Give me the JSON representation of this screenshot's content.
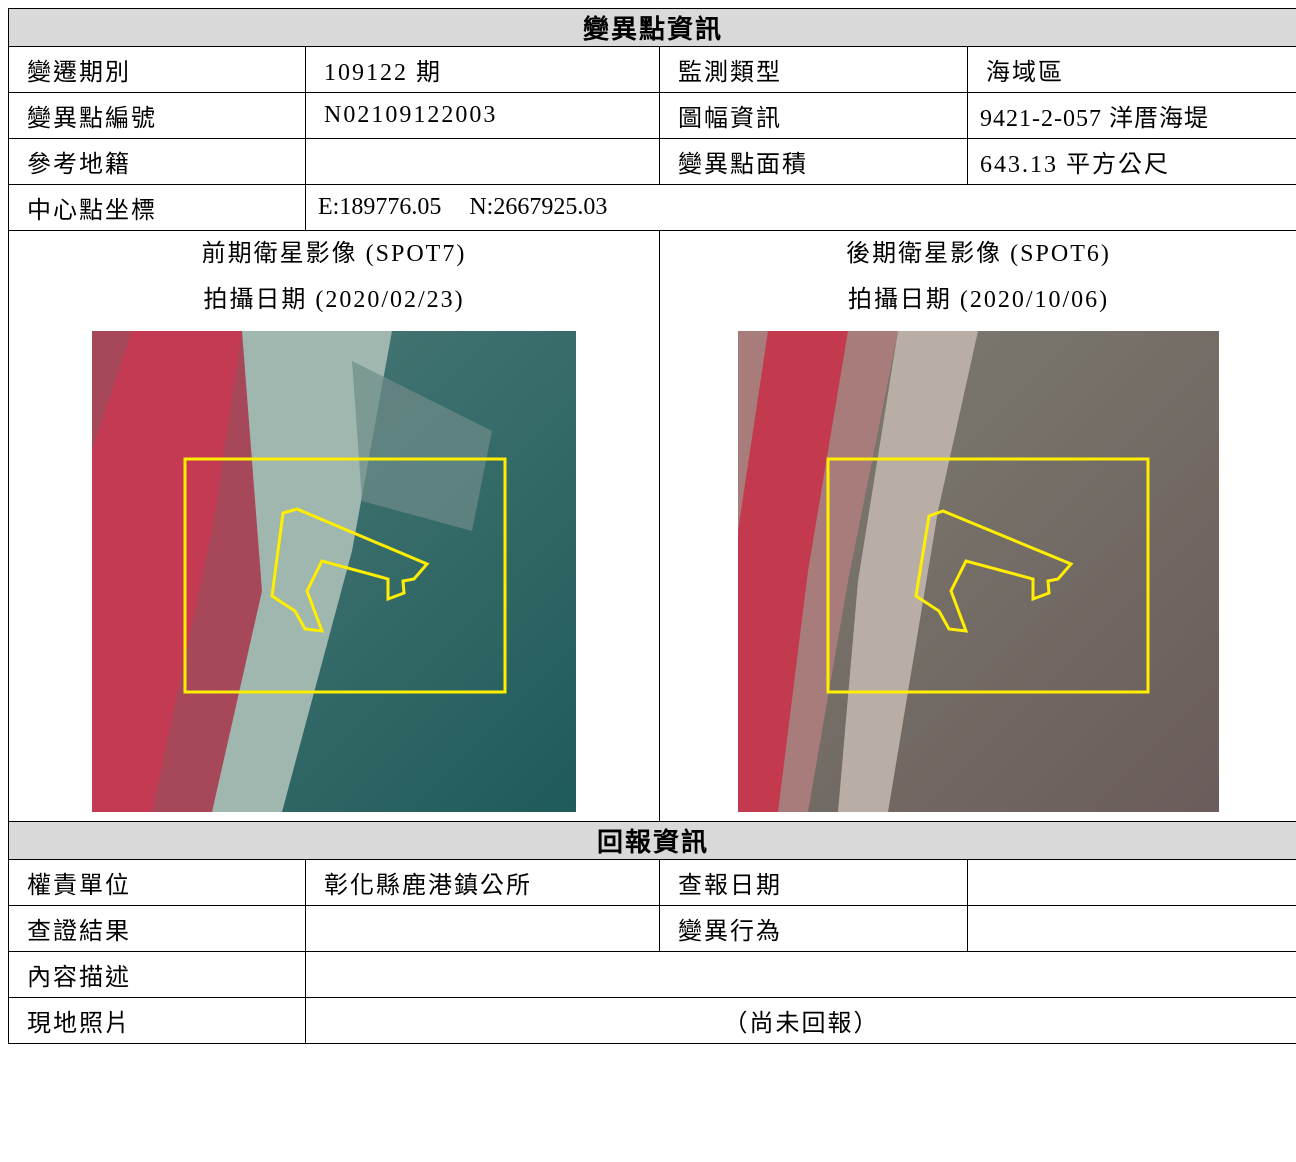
{
  "header": {
    "title": "變異點資訊"
  },
  "info": {
    "period_label": "變遷期別",
    "period": "109122 期",
    "type_label": "監測類型",
    "type": "海域區",
    "id_label": "變異點編號",
    "id": "N02109122003",
    "sheet_label": "圖幅資訊",
    "sheet": "9421-2-057 洋厝海堤",
    "cadastre_label": "參考地籍",
    "area_label": "變異點面積",
    "area": "643.13 平方公尺",
    "center_label": "中心點坐標",
    "center_e": "E:189776.05",
    "center_n": "N:2667925.03"
  },
  "images": [
    {
      "title": "前期衛星影像 (SPOT7)",
      "date": "拍攝日期 (2020/02/23)"
    },
    {
      "title": "後期衛星影像 (SPOT6)",
      "date": "拍攝日期 (2020/10/06)"
    }
  ],
  "report": {
    "title": "回報資訊",
    "unit_label": "權責單位",
    "unit": "彰化縣鹿港鎮公所",
    "date_label": "查報日期",
    "result_label": "查證結果",
    "behavior_label": "變異行為",
    "description_label": "內容描述",
    "photo_label": "現地照片",
    "photo": "（尚未回報）"
  }
}
